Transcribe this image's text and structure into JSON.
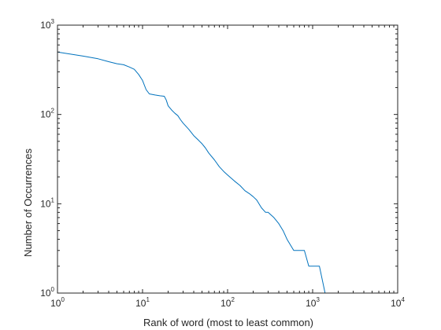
{
  "chart_data": {
    "type": "line",
    "scale": {
      "x": "log",
      "y": "log"
    },
    "xlabel": "Rank of word (most to least common)",
    "ylabel": "Number of Occurrences",
    "xlim": [
      1,
      10000
    ],
    "ylim": [
      1,
      1000
    ],
    "grid": false,
    "box": true,
    "line_color": "#0072BD",
    "axis_color": "#262626",
    "x_ticks": [
      {
        "base": "10",
        "exp": "0",
        "value": 1
      },
      {
        "base": "10",
        "exp": "1",
        "value": 10
      },
      {
        "base": "10",
        "exp": "2",
        "value": 100
      },
      {
        "base": "10",
        "exp": "3",
        "value": 1000
      },
      {
        "base": "10",
        "exp": "4",
        "value": 10000
      }
    ],
    "y_ticks": [
      {
        "base": "10",
        "exp": "0",
        "value": 1
      },
      {
        "base": "10",
        "exp": "1",
        "value": 10
      },
      {
        "base": "10",
        "exp": "2",
        "value": 100
      },
      {
        "base": "10",
        "exp": "3",
        "value": 1000
      }
    ],
    "series": [
      {
        "x": [
          1,
          1.5,
          2,
          3,
          4,
          5,
          6,
          7,
          8,
          9,
          10,
          11,
          12,
          14,
          16,
          18,
          19,
          20,
          22,
          24,
          26,
          28,
          30,
          35,
          40,
          45,
          50,
          55,
          60,
          70,
          80,
          90,
          100,
          120,
          140,
          160,
          180,
          200,
          220,
          250,
          280,
          300,
          350,
          400,
          450,
          500,
          600,
          700,
          800,
          900,
          1000,
          1200,
          1400,
          2000,
          3000
        ],
        "y": [
          500,
          470,
          450,
          420,
          390,
          370,
          360,
          340,
          320,
          280,
          240,
          190,
          170,
          165,
          162,
          160,
          145,
          125,
          112,
          103,
          97,
          87,
          80,
          68,
          58,
          52,
          47,
          42,
          37,
          31,
          26,
          23,
          21,
          18,
          16,
          14,
          13,
          12,
          11,
          9,
          8,
          8,
          7,
          6,
          5,
          4,
          3,
          3,
          3,
          2,
          2,
          2,
          1,
          1,
          1
        ]
      }
    ]
  }
}
